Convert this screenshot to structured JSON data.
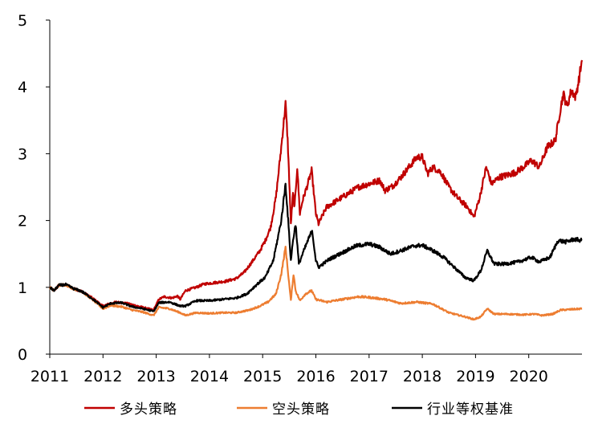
{
  "chart_data": {
    "type": "line",
    "title": "",
    "xlabel": "",
    "ylabel": "",
    "xlim": [
      2011.0,
      2021.0
    ],
    "ylim": [
      0,
      5
    ],
    "grid": false,
    "legend_position": "bottom",
    "x_ticks": [
      "2011",
      "2012",
      "2013",
      "2014",
      "2015",
      "2016",
      "2017",
      "2018",
      "2019",
      "2020"
    ],
    "y_ticks": [
      "0",
      "1",
      "2",
      "3",
      "4",
      "5"
    ],
    "series": [
      {
        "name": "多头策略",
        "color": "#c00000",
        "points": [
          [
            2011.0,
            1.0
          ],
          [
            2011.08,
            0.95
          ],
          [
            2011.17,
            1.03
          ],
          [
            2011.3,
            1.04
          ],
          [
            2011.45,
            0.98
          ],
          [
            2011.6,
            0.94
          ],
          [
            2011.8,
            0.84
          ],
          [
            2012.0,
            0.72
          ],
          [
            2012.1,
            0.75
          ],
          [
            2012.25,
            0.78
          ],
          [
            2012.45,
            0.76
          ],
          [
            2012.65,
            0.72
          ],
          [
            2012.85,
            0.68
          ],
          [
            2012.95,
            0.66
          ],
          [
            2013.05,
            0.82
          ],
          [
            2013.15,
            0.86
          ],
          [
            2013.3,
            0.84
          ],
          [
            2013.4,
            0.87
          ],
          [
            2013.45,
            0.82
          ],
          [
            2013.55,
            0.95
          ],
          [
            2013.75,
            1.0
          ],
          [
            2013.9,
            1.05
          ],
          [
            2014.1,
            1.07
          ],
          [
            2014.3,
            1.09
          ],
          [
            2014.5,
            1.13
          ],
          [
            2014.65,
            1.22
          ],
          [
            2014.8,
            1.38
          ],
          [
            2014.95,
            1.55
          ],
          [
            2015.05,
            1.7
          ],
          [
            2015.15,
            1.9
          ],
          [
            2015.25,
            2.35
          ],
          [
            2015.35,
            3.1
          ],
          [
            2015.43,
            3.75
          ],
          [
            2015.47,
            3.2
          ],
          [
            2015.5,
            2.6
          ],
          [
            2015.53,
            1.95
          ],
          [
            2015.57,
            2.4
          ],
          [
            2015.6,
            2.2
          ],
          [
            2015.65,
            2.8
          ],
          [
            2015.7,
            2.1
          ],
          [
            2015.75,
            2.3
          ],
          [
            2015.85,
            2.55
          ],
          [
            2015.92,
            2.75
          ],
          [
            2016.0,
            2.1
          ],
          [
            2016.05,
            1.95
          ],
          [
            2016.2,
            2.2
          ],
          [
            2016.4,
            2.3
          ],
          [
            2016.6,
            2.4
          ],
          [
            2016.8,
            2.5
          ],
          [
            2017.0,
            2.55
          ],
          [
            2017.2,
            2.6
          ],
          [
            2017.3,
            2.45
          ],
          [
            2017.45,
            2.52
          ],
          [
            2017.6,
            2.65
          ],
          [
            2017.8,
            2.85
          ],
          [
            2017.9,
            2.95
          ],
          [
            2018.0,
            2.95
          ],
          [
            2018.1,
            2.7
          ],
          [
            2018.2,
            2.8
          ],
          [
            2018.35,
            2.72
          ],
          [
            2018.5,
            2.5
          ],
          [
            2018.65,
            2.35
          ],
          [
            2018.85,
            2.2
          ],
          [
            2018.97,
            2.05
          ],
          [
            2019.08,
            2.35
          ],
          [
            2019.2,
            2.8
          ],
          [
            2019.3,
            2.55
          ],
          [
            2019.45,
            2.65
          ],
          [
            2019.6,
            2.68
          ],
          [
            2019.75,
            2.72
          ],
          [
            2019.9,
            2.8
          ],
          [
            2020.05,
            2.9
          ],
          [
            2020.2,
            2.8
          ],
          [
            2020.35,
            3.1
          ],
          [
            2020.5,
            3.2
          ],
          [
            2020.58,
            3.6
          ],
          [
            2020.65,
            3.9
          ],
          [
            2020.72,
            3.7
          ],
          [
            2020.8,
            3.95
          ],
          [
            2020.88,
            3.85
          ],
          [
            2020.94,
            4.1
          ],
          [
            2021.0,
            4.4
          ]
        ]
      },
      {
        "name": "空头策略",
        "color": "#ed7d31",
        "points": [
          [
            2011.0,
            1.0
          ],
          [
            2011.08,
            0.95
          ],
          [
            2011.17,
            1.03
          ],
          [
            2011.3,
            1.04
          ],
          [
            2011.45,
            0.98
          ],
          [
            2011.6,
            0.94
          ],
          [
            2011.8,
            0.82
          ],
          [
            2012.0,
            0.68
          ],
          [
            2012.15,
            0.73
          ],
          [
            2012.35,
            0.71
          ],
          [
            2012.55,
            0.66
          ],
          [
            2012.75,
            0.63
          ],
          [
            2012.95,
            0.58
          ],
          [
            2013.05,
            0.7
          ],
          [
            2013.25,
            0.68
          ],
          [
            2013.45,
            0.62
          ],
          [
            2013.55,
            0.58
          ],
          [
            2013.75,
            0.62
          ],
          [
            2014.0,
            0.61
          ],
          [
            2014.25,
            0.62
          ],
          [
            2014.5,
            0.62
          ],
          [
            2014.75,
            0.66
          ],
          [
            2014.95,
            0.72
          ],
          [
            2015.1,
            0.78
          ],
          [
            2015.25,
            0.9
          ],
          [
            2015.35,
            1.2
          ],
          [
            2015.43,
            1.6
          ],
          [
            2015.48,
            1.2
          ],
          [
            2015.53,
            0.8
          ],
          [
            2015.58,
            1.2
          ],
          [
            2015.62,
            0.95
          ],
          [
            2015.7,
            0.8
          ],
          [
            2015.8,
            0.9
          ],
          [
            2015.92,
            0.95
          ],
          [
            2016.0,
            0.82
          ],
          [
            2016.2,
            0.78
          ],
          [
            2016.5,
            0.82
          ],
          [
            2016.8,
            0.86
          ],
          [
            2017.0,
            0.85
          ],
          [
            2017.3,
            0.82
          ],
          [
            2017.6,
            0.76
          ],
          [
            2017.9,
            0.78
          ],
          [
            2018.2,
            0.75
          ],
          [
            2018.5,
            0.62
          ],
          [
            2018.8,
            0.56
          ],
          [
            2018.97,
            0.52
          ],
          [
            2019.1,
            0.56
          ],
          [
            2019.22,
            0.68
          ],
          [
            2019.35,
            0.6
          ],
          [
            2019.6,
            0.6
          ],
          [
            2019.9,
            0.59
          ],
          [
            2020.1,
            0.6
          ],
          [
            2020.25,
            0.58
          ],
          [
            2020.45,
            0.6
          ],
          [
            2020.6,
            0.66
          ],
          [
            2020.8,
            0.67
          ],
          [
            2021.0,
            0.68
          ]
        ]
      },
      {
        "name": "行业等权基准",
        "color": "#000000",
        "points": [
          [
            2011.0,
            1.0
          ],
          [
            2011.08,
            0.95
          ],
          [
            2011.17,
            1.03
          ],
          [
            2011.3,
            1.04
          ],
          [
            2011.45,
            0.98
          ],
          [
            2011.6,
            0.94
          ],
          [
            2011.8,
            0.83
          ],
          [
            2012.0,
            0.7
          ],
          [
            2012.15,
            0.76
          ],
          [
            2012.35,
            0.77
          ],
          [
            2012.55,
            0.71
          ],
          [
            2012.75,
            0.68
          ],
          [
            2012.95,
            0.64
          ],
          [
            2013.05,
            0.77
          ],
          [
            2013.25,
            0.78
          ],
          [
            2013.45,
            0.72
          ],
          [
            2013.55,
            0.72
          ],
          [
            2013.75,
            0.8
          ],
          [
            2014.0,
            0.8
          ],
          [
            2014.25,
            0.82
          ],
          [
            2014.5,
            0.84
          ],
          [
            2014.7,
            0.9
          ],
          [
            2014.9,
            1.05
          ],
          [
            2015.05,
            1.15
          ],
          [
            2015.2,
            1.4
          ],
          [
            2015.35,
            2.0
          ],
          [
            2015.43,
            2.55
          ],
          [
            2015.48,
            2.0
          ],
          [
            2015.53,
            1.4
          ],
          [
            2015.57,
            1.7
          ],
          [
            2015.62,
            1.95
          ],
          [
            2015.68,
            1.35
          ],
          [
            2015.75,
            1.5
          ],
          [
            2015.85,
            1.7
          ],
          [
            2015.93,
            1.85
          ],
          [
            2016.0,
            1.4
          ],
          [
            2016.05,
            1.3
          ],
          [
            2016.25,
            1.42
          ],
          [
            2016.5,
            1.52
          ],
          [
            2016.75,
            1.62
          ],
          [
            2017.0,
            1.65
          ],
          [
            2017.2,
            1.6
          ],
          [
            2017.4,
            1.5
          ],
          [
            2017.6,
            1.55
          ],
          [
            2017.85,
            1.62
          ],
          [
            2018.0,
            1.63
          ],
          [
            2018.2,
            1.55
          ],
          [
            2018.4,
            1.45
          ],
          [
            2018.6,
            1.3
          ],
          [
            2018.8,
            1.15
          ],
          [
            2018.97,
            1.1
          ],
          [
            2019.1,
            1.25
          ],
          [
            2019.22,
            1.55
          ],
          [
            2019.35,
            1.35
          ],
          [
            2019.55,
            1.35
          ],
          [
            2019.8,
            1.38
          ],
          [
            2020.05,
            1.45
          ],
          [
            2020.2,
            1.38
          ],
          [
            2020.4,
            1.45
          ],
          [
            2020.55,
            1.7
          ],
          [
            2020.7,
            1.68
          ],
          [
            2020.85,
            1.72
          ],
          [
            2021.0,
            1.7
          ]
        ]
      }
    ]
  }
}
